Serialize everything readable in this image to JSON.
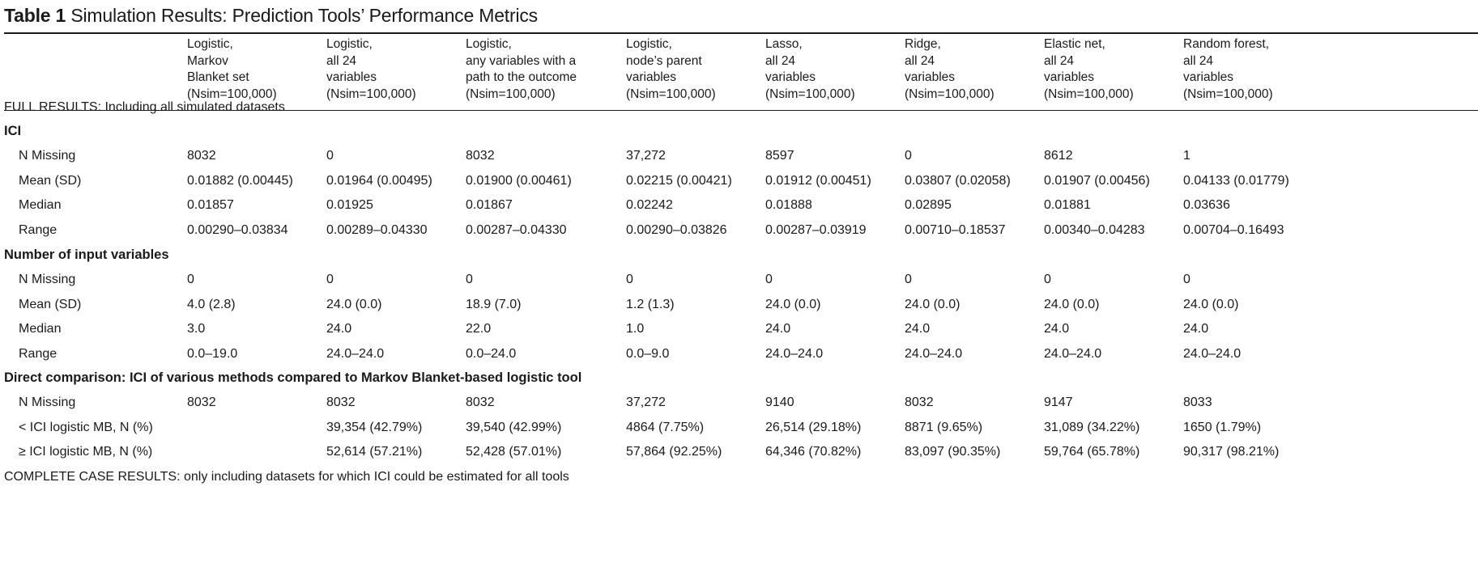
{
  "table": {
    "number": "Table 1",
    "title": "Simulation Results: Prediction Tools’ Performance Metrics",
    "columns": [
      [
        "Logistic,",
        "Markov",
        "Blanket set",
        "(Nsim=100,000)"
      ],
      [
        "Logistic,",
        "all 24",
        "variables",
        "(Nsim=100,000)"
      ],
      [
        "Logistic,",
        "any variables with a",
        "path to the outcome",
        "(Nsim=100,000)"
      ],
      [
        "Logistic,",
        "node’s parent",
        "variables",
        "(Nsim=100,000)"
      ],
      [
        "Lasso,",
        "all 24",
        "variables",
        "(Nsim=100,000)"
      ],
      [
        "Ridge,",
        "all 24",
        "variables",
        "(Nsim=100,000)"
      ],
      [
        "Elastic net,",
        "all 24",
        "variables",
        "(Nsim=100,000)"
      ],
      [
        "Random forest,",
        "all 24",
        "variables",
        "(Nsim=100,000)"
      ]
    ],
    "full_results_note": "FULL RESULTS: Including all simulated datasets",
    "sections": [
      {
        "title": "ICI",
        "rows": [
          {
            "label": "N Missing",
            "values": [
              "8032",
              "0",
              "8032",
              "37,272",
              "8597",
              "0",
              "8612",
              "1"
            ]
          },
          {
            "label": "Mean (SD)",
            "values": [
              "0.01882 (0.00445)",
              "0.01964 (0.00495)",
              "0.01900 (0.00461)",
              "0.02215 (0.00421)",
              "0.01912 (0.00451)",
              "0.03807 (0.02058)",
              "0.01907 (0.00456)",
              "0.04133 (0.01779)"
            ]
          },
          {
            "label": "Median",
            "values": [
              "0.01857",
              "0.01925",
              "0.01867",
              "0.02242",
              "0.01888",
              "0.02895",
              "0.01881",
              "0.03636"
            ]
          },
          {
            "label": "Range",
            "values": [
              "0.00290–0.03834",
              "0.00289–0.04330",
              "0.00287–0.04330",
              "0.00290–0.03826",
              "0.00287–0.03919",
              "0.00710–0.18537",
              "0.00340–0.04283",
              "0.00704–0.16493"
            ]
          }
        ]
      },
      {
        "title": "Number of input variables",
        "rows": [
          {
            "label": "N Missing",
            "values": [
              "0",
              "0",
              "0",
              "0",
              "0",
              "0",
              "0",
              "0"
            ]
          },
          {
            "label": "Mean (SD)",
            "values": [
              "4.0 (2.8)",
              "24.0 (0.0)",
              "18.9 (7.0)",
              "1.2 (1.3)",
              "24.0 (0.0)",
              "24.0 (0.0)",
              "24.0 (0.0)",
              "24.0 (0.0)"
            ]
          },
          {
            "label": "Median",
            "values": [
              "3.0",
              "24.0",
              "22.0",
              "1.0",
              "24.0",
              "24.0",
              "24.0",
              "24.0"
            ]
          },
          {
            "label": "Range",
            "values": [
              "0.0–19.0",
              "24.0–24.0",
              "0.0–24.0",
              "0.0–9.0",
              "24.0–24.0",
              "24.0–24.0",
              "24.0–24.0",
              "24.0–24.0"
            ]
          }
        ]
      },
      {
        "title": "Direct comparison: ICI of various methods compared to Markov Blanket-based logistic tool",
        "rows": [
          {
            "label": "N Missing",
            "values": [
              "8032",
              "8032",
              "8032",
              "37,272",
              "9140",
              "8032",
              "9147",
              "8033"
            ]
          },
          {
            "label": "< ICI logistic MB, N (%)",
            "values": [
              "",
              "39,354 (42.79%)",
              "39,540 (42.99%)",
              "4864 (7.75%)",
              "26,514 (29.18%)",
              "8871 (9.65%)",
              "31,089 (34.22%)",
              "1650 (1.79%)"
            ]
          },
          {
            "label": "≥ ICI logistic MB, N (%)",
            "values": [
              "",
              "52,614 (57.21%)",
              "52,428 (57.01%)",
              "57,864 (92.25%)",
              "64,346 (70.82%)",
              "83,097 (90.35%)",
              "59,764 (65.78%)",
              "90,317 (98.21%)"
            ]
          }
        ]
      }
    ],
    "complete_case_note": "COMPLETE CASE RESULTS: only including datasets for which ICI could be estimated for all tools"
  }
}
